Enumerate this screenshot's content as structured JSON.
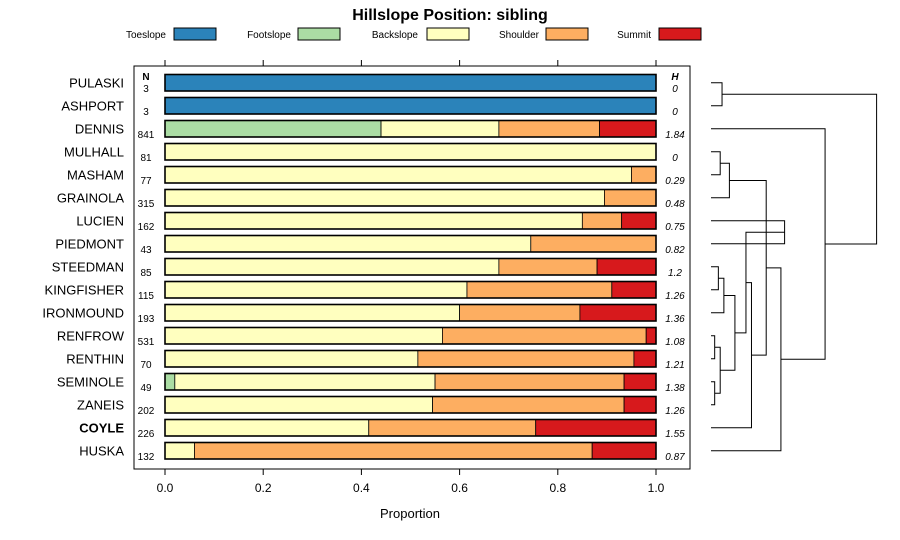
{
  "chart_data": {
    "type": "bar",
    "orientation": "horizontal",
    "stacked": true,
    "title": "Hillslope Position: sibling",
    "xlabel": "Proportion",
    "xlim": [
      0,
      1
    ],
    "x_ticks": [
      "0.0",
      "0.2",
      "0.4",
      "0.6",
      "0.8",
      "1.0"
    ],
    "legend_position": "top",
    "n_header": "N",
    "h_header": "H",
    "highlight": "COYLE",
    "categories": [
      "PULASKI",
      "ASHPORT",
      "DENNIS",
      "MULHALL",
      "MASHAM",
      "GRAINOLA",
      "LUCIEN",
      "PIEDMONT",
      "STEEDMAN",
      "KINGFISHER",
      "IRONMOUND",
      "RENFROW",
      "RENTHIN",
      "SEMINOLE",
      "ZANEIS",
      "COYLE",
      "HUSKA"
    ],
    "n": [
      "3",
      "3",
      "841",
      "81",
      "77",
      "315",
      "162",
      "43",
      "85",
      "115",
      "193",
      "531",
      "70",
      "49",
      "202",
      "226",
      "132"
    ],
    "h": [
      "0",
      "0",
      "1.84",
      "0",
      "0.29",
      "0.48",
      "0.75",
      "0.82",
      "1.2",
      "1.26",
      "1.36",
      "1.08",
      "1.21",
      "1.38",
      "1.26",
      "1.55",
      "0.87"
    ],
    "series": [
      {
        "name": "Toeslope",
        "color": "#2b83ba",
        "values": [
          1,
          1,
          0,
          0,
          0,
          0,
          0,
          0,
          0,
          0,
          0,
          0,
          0,
          0,
          0,
          0,
          0
        ]
      },
      {
        "name": "Footslope",
        "color": "#abdda4",
        "values": [
          0,
          0,
          0.44,
          0,
          0,
          0,
          0,
          0,
          0,
          0,
          0,
          0,
          0,
          0.02,
          0,
          0,
          0
        ]
      },
      {
        "name": "Backslope",
        "color": "#ffffbf",
        "values": [
          0,
          0,
          0.24,
          1,
          0.95,
          0.895,
          0.85,
          0.745,
          0.68,
          0.615,
          0.6,
          0.565,
          0.515,
          0.53,
          0.545,
          0.415,
          0.06
        ]
      },
      {
        "name": "Shoulder",
        "color": "#fdae61",
        "values": [
          0,
          0,
          0.205,
          0,
          0.05,
          0.105,
          0.08,
          0.255,
          0.2,
          0.295,
          0.245,
          0.415,
          0.44,
          0.385,
          0.39,
          0.34,
          0.81
        ]
      },
      {
        "name": "Summit",
        "color": "#d7191c",
        "values": [
          0,
          0,
          0.115,
          0,
          0,
          0,
          0.07,
          0,
          0.12,
          0.09,
          0.155,
          0.02,
          0.045,
          0.065,
          0.065,
          0.245,
          0.13
        ]
      }
    ],
    "dendrogram_merges": [
      [
        0,
        1,
        0.06
      ],
      [
        3,
        4,
        0.05
      ],
      [
        5,
        -2,
        0.1
      ],
      [
        6,
        7,
        0.4
      ],
      [
        8,
        9,
        0.04
      ],
      [
        -5,
        10,
        0.07
      ],
      [
        11,
        12,
        0.02
      ],
      [
        13,
        14,
        0.02
      ],
      [
        -7,
        -8,
        0.05
      ],
      [
        -6,
        -9,
        0.13
      ],
      [
        -4,
        -10,
        0.19
      ],
      [
        15,
        -11,
        0.22
      ],
      [
        -3,
        -12,
        0.3
      ],
      [
        -13,
        16,
        0.38
      ],
      [
        2,
        -14,
        0.62
      ],
      [
        -1,
        -15,
        0.9
      ]
    ]
  }
}
